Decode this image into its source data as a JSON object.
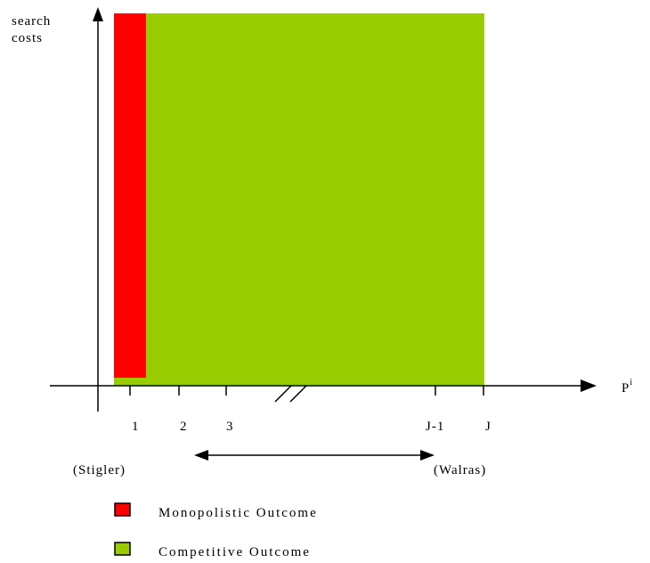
{
  "axes": {
    "y_label_line1": "search",
    "y_label_line2": "costs",
    "x_label": "P",
    "x_label_superscript": "i"
  },
  "ticks": [
    {
      "label": "1"
    },
    {
      "label": "2"
    },
    {
      "label": "3"
    },
    {
      "label": "J-1"
    },
    {
      "label": "J"
    }
  ],
  "endpoints": {
    "left": "(Stigler)",
    "right": "(Walras)"
  },
  "regions": {
    "monopolistic_color": "#ff0000",
    "competitive_color": "#99cc00"
  },
  "legend": [
    {
      "label": "Monopolistic Outcome",
      "color": "#ff0000"
    },
    {
      "label": "Competitive Outcome",
      "color": "#99cc00"
    }
  ]
}
